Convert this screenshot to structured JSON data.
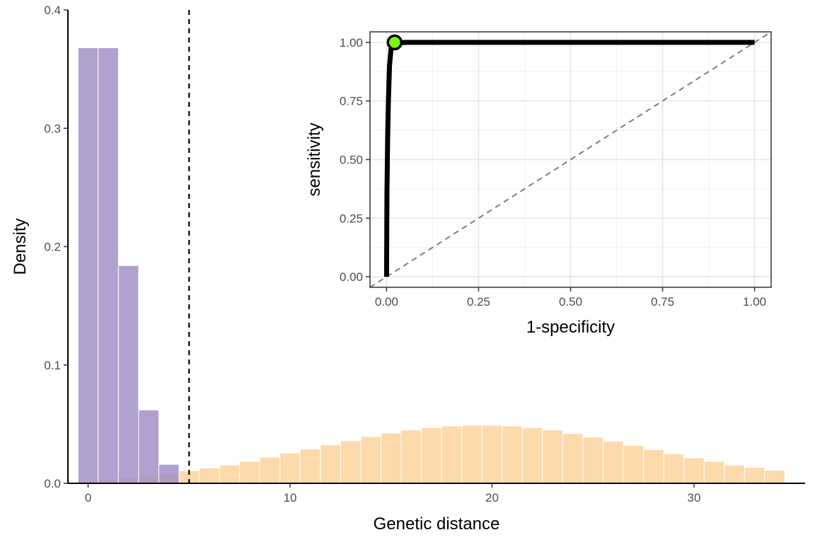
{
  "chart_data": [
    {
      "type": "bar",
      "subtype": "overlaid-histogram",
      "xlabel": "Genetic distance",
      "ylabel": "Density",
      "xlim": [
        -1,
        35.5
      ],
      "ylim": [
        0,
        0.4
      ],
      "x_ticks": [
        0,
        10,
        20,
        30
      ],
      "x_tick_labels": [
        "0",
        "10",
        "20",
        "30"
      ],
      "y_ticks": [
        0,
        0.1,
        0.2,
        0.3,
        0.4
      ],
      "y_tick_labels": [
        "0.0",
        "0.1",
        "0.2",
        "0.3",
        "0.4"
      ],
      "grid": false,
      "bin_width": 1,
      "threshold_line": {
        "x": 5,
        "style": "dashed",
        "color": "#000000"
      },
      "series": [
        {
          "color": "#fdd49e",
          "x": [
            0,
            1,
            2,
            3,
            4,
            5,
            6,
            7,
            8,
            9,
            10,
            11,
            12,
            13,
            14,
            15,
            16,
            17,
            18,
            19,
            20,
            21,
            22,
            23,
            24,
            25,
            26,
            27,
            28,
            29,
            30,
            31,
            32,
            33,
            34
          ],
          "values": [
            0.0015,
            0.003,
            0.0045,
            0.006,
            0.008,
            0.0105,
            0.013,
            0.0155,
            0.0185,
            0.022,
            0.0255,
            0.029,
            0.0325,
            0.036,
            0.0395,
            0.0425,
            0.045,
            0.047,
            0.0485,
            0.049,
            0.049,
            0.0485,
            0.047,
            0.045,
            0.042,
            0.039,
            0.0355,
            0.032,
            0.0285,
            0.025,
            0.0215,
            0.0185,
            0.0155,
            0.0135,
            0.011
          ]
        },
        {
          "color": "#9e8ac2",
          "x": [
            0,
            1,
            2,
            3,
            4
          ],
          "values": [
            0.368,
            0.368,
            0.184,
            0.062,
            0.016
          ]
        }
      ]
    },
    {
      "type": "line",
      "subtype": "roc-curve-inset",
      "xlabel": "1-specificity",
      "ylabel": "sensitivity",
      "xlim": [
        -0.045,
        1.045
      ],
      "ylim": [
        -0.045,
        1.045
      ],
      "x_ticks": [
        0,
        0.25,
        0.5,
        0.75,
        1
      ],
      "x_tick_labels": [
        "0.00",
        "0.25",
        "0.50",
        "0.75",
        "1.00"
      ],
      "y_ticks": [
        0,
        0.25,
        0.5,
        0.75,
        1
      ],
      "y_tick_labels": [
        "0.00",
        "0.25",
        "0.50",
        "0.75",
        "1.00"
      ],
      "grid": true,
      "reference_line": {
        "from": [
          0,
          0
        ],
        "to": [
          1,
          1
        ],
        "style": "dashed",
        "color": "#7f7f7f"
      },
      "series": [
        {
          "color": "#000000",
          "x": [
            0,
            0.001,
            0.003,
            0.005,
            0.008,
            0.012,
            0.02,
            0.05,
            0.2,
            0.5,
            1.0
          ],
          "y": [
            0,
            0.35,
            0.6,
            0.75,
            0.9,
            0.97,
            0.995,
            1.0,
            1.0,
            1.0,
            1.0
          ]
        }
      ],
      "highlight_point": {
        "x": 0.022,
        "y": 1.0,
        "fill": "#7cfc00",
        "stroke": "#000000"
      }
    }
  ]
}
